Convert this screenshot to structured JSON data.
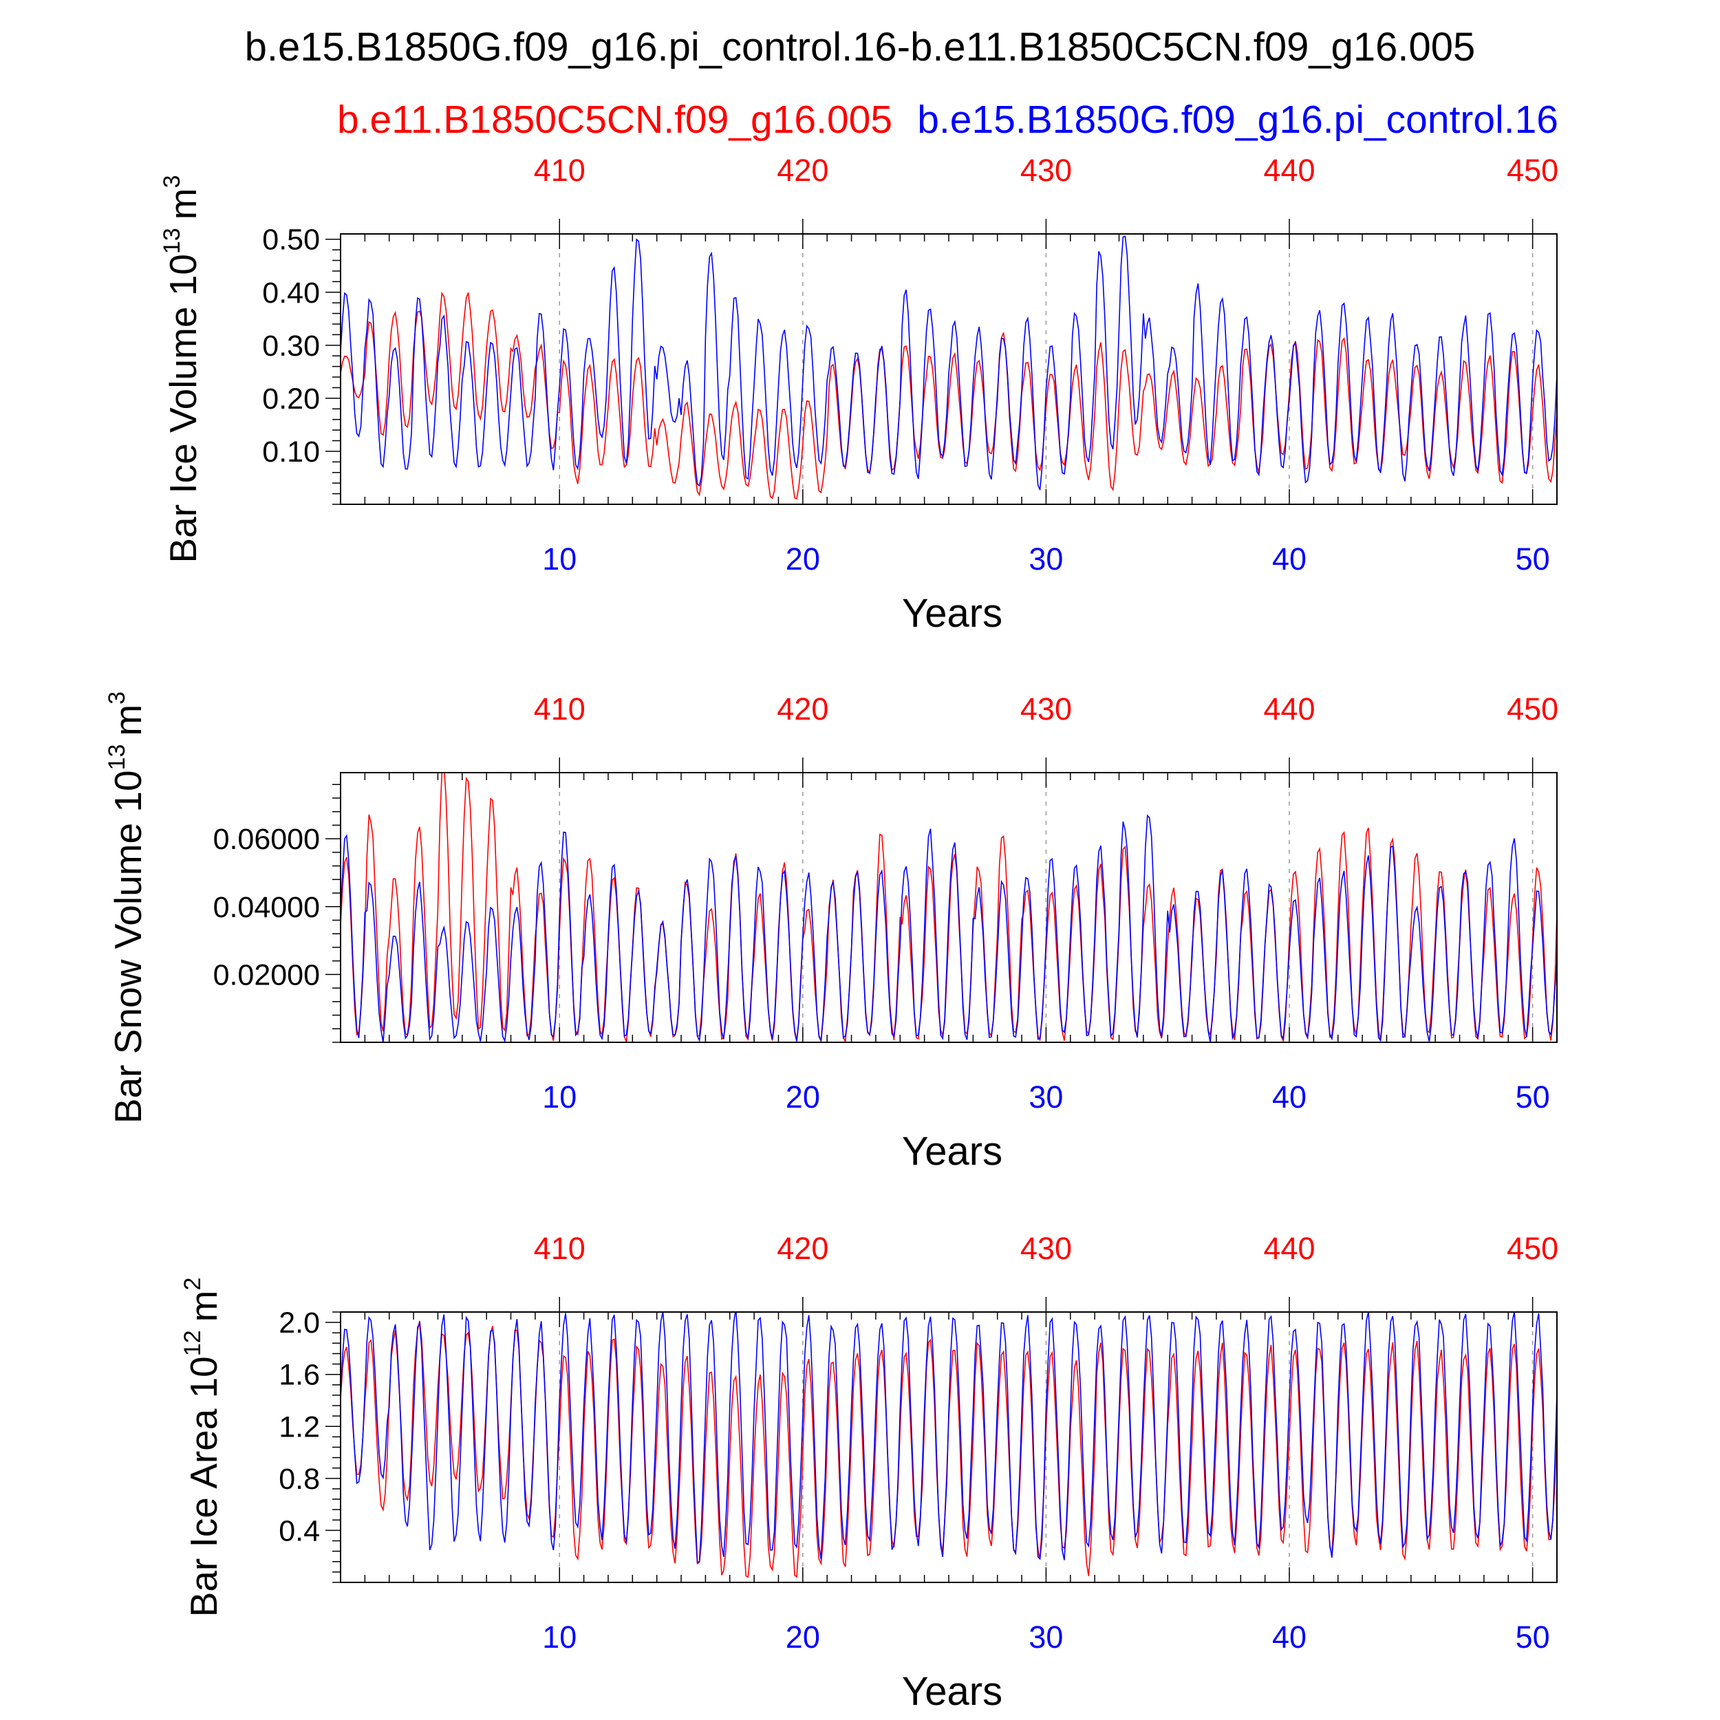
{
  "title": "b.e15.B1850G.f09_g16.pi_control.16-b.e11.B1850C5CN.f09_g16.005",
  "legend": {
    "red_label": "b.e11.B1850C5CN.f09_g16.005",
    "blue_label": "b.e15.B1850G.f09_g16.pi_control.16"
  },
  "colors": {
    "red": "#ff0000",
    "blue": "#0000ff",
    "grid": "#999999",
    "axis": "#000000"
  },
  "chart_data": [
    {
      "type": "line",
      "ylabel": "Bar Ice Volume 10",
      "ylabel_exp": "13",
      "ylabel_unit": "m",
      "ylabel_unit_exp": "3",
      "xlabel": "Years",
      "xlim": [
        1,
        51
      ],
      "ylim": [
        0.0,
        0.51
      ],
      "yticks": [
        0.1,
        0.2,
        0.3,
        0.4,
        0.5
      ],
      "yticklabels": [
        "0.10",
        "0.20",
        "0.30",
        "0.40",
        "0.50"
      ],
      "xticks_bottom": [
        10,
        20,
        30,
        40,
        50
      ],
      "xticklabels_bottom": [
        "10",
        "20",
        "30",
        "40",
        "50"
      ],
      "xticklabels_top": [
        "410",
        "420",
        "430",
        "440",
        "450"
      ],
      "series": [
        {
          "name": "b.e11.B1850C5CN.f09_g16.005",
          "color": "red",
          "annual_max": [
            0.28,
            0.35,
            0.36,
            0.37,
            0.4,
            0.4,
            0.37,
            0.32,
            0.3,
            0.27,
            0.26,
            0.27,
            0.28,
            0.16,
            0.19,
            0.17,
            0.19,
            0.18,
            0.18,
            0.2,
            0.26,
            0.28,
            0.3,
            0.3,
            0.28,
            0.28,
            0.27,
            0.32,
            0.27,
            0.25,
            0.26,
            0.3,
            0.29,
            0.25,
            0.25,
            0.24,
            0.26,
            0.3,
            0.3,
            0.31,
            0.31,
            0.31,
            0.28,
            0.27,
            0.27,
            0.25,
            0.27,
            0.28,
            0.29,
            0.26,
            0.25
          ],
          "annual_min": [
            0.2,
            0.13,
            0.14,
            0.19,
            0.18,
            0.16,
            0.17,
            0.16,
            0.1,
            0.04,
            0.07,
            0.07,
            0.07,
            0.04,
            0.02,
            0.03,
            0.03,
            0.01,
            0.01,
            0.02,
            0.07,
            0.06,
            0.06,
            0.09,
            0.08,
            0.07,
            0.09,
            0.06,
            0.06,
            0.07,
            0.05,
            0.03,
            0.09,
            0.1,
            0.07,
            0.07,
            0.07,
            0.06,
            0.09,
            0.06,
            0.06,
            0.07,
            0.06,
            0.09,
            0.05,
            0.07,
            0.06,
            0.04,
            0.05,
            0.04,
            0.05
          ]
        },
        {
          "name": "b.e15.B1850G.f09_g16.pi_control.16",
          "color": "blue",
          "annual_max": [
            0.4,
            0.39,
            0.3,
            0.39,
            0.35,
            0.31,
            0.31,
            0.3,
            0.36,
            0.33,
            0.32,
            0.45,
            0.51,
            0.3,
            0.27,
            0.47,
            0.39,
            0.35,
            0.33,
            0.34,
            0.3,
            0.29,
            0.3,
            0.4,
            0.37,
            0.34,
            0.33,
            0.32,
            0.35,
            0.3,
            0.36,
            0.48,
            0.51,
            0.35,
            0.3,
            0.41,
            0.39,
            0.36,
            0.32,
            0.3,
            0.37,
            0.38,
            0.35,
            0.36,
            0.31,
            0.32,
            0.35,
            0.36,
            0.33,
            0.33,
            0.32
          ],
          "annual_min": [
            0.12,
            0.07,
            0.06,
            0.09,
            0.07,
            0.07,
            0.07,
            0.07,
            0.07,
            0.07,
            0.13,
            0.08,
            0.12,
            0.15,
            0.03,
            0.08,
            0.05,
            0.05,
            0.07,
            0.08,
            0.07,
            0.06,
            0.05,
            0.05,
            0.08,
            0.07,
            0.05,
            0.08,
            0.03,
            0.05,
            0.08,
            0.1,
            0.15,
            0.11,
            0.09,
            0.08,
            0.08,
            0.06,
            0.07,
            0.04,
            0.07,
            0.08,
            0.06,
            0.05,
            0.06,
            0.05,
            0.06,
            0.05,
            0.06,
            0.08,
            0.13
          ]
        }
      ]
    },
    {
      "type": "line",
      "ylabel": "Bar Snow Volume 10",
      "ylabel_exp": "13",
      "ylabel_unit": "m",
      "ylabel_unit_exp": "3",
      "xlabel": "Years",
      "xlim": [
        1,
        51
      ],
      "ylim": [
        0.0,
        0.0795
      ],
      "yticks": [
        0.02,
        0.04,
        0.06
      ],
      "yticklabels": [
        "0.02000",
        "0.04000",
        "0.06000"
      ],
      "xticks_bottom": [
        10,
        20,
        30,
        40,
        50
      ],
      "xticklabels_bottom": [
        "10",
        "20",
        "30",
        "40",
        "50"
      ],
      "xticklabels_top": [
        "410",
        "420",
        "430",
        "440",
        "450"
      ],
      "series": [
        {
          "name": "b.e11.B1850C5CN.f09_g16.005",
          "color": "red",
          "annual_max": [
            0.056,
            0.067,
            0.049,
            0.064,
            0.08,
            0.078,
            0.072,
            0.052,
            0.045,
            0.055,
            0.055,
            0.048,
            0.046,
            0.035,
            0.048,
            0.04,
            0.055,
            0.043,
            0.052,
            0.04,
            0.047,
            0.052,
            0.062,
            0.043,
            0.052,
            0.055,
            0.052,
            0.062,
            0.045,
            0.045,
            0.047,
            0.052,
            0.058,
            0.047,
            0.045,
            0.043,
            0.052,
            0.044,
            0.046,
            0.052,
            0.058,
            0.062,
            0.063,
            0.06,
            0.055,
            0.052,
            0.05,
            0.045,
            0.044,
            0.052,
            0.058
          ],
          "annual_min": [
            0.002,
            0.004,
            0.002,
            0.004,
            0.005,
            0.004,
            0.002,
            0.001,
            0.001,
            0.001,
            0.001,
            0.001,
            0.001,
            0.001,
            0.001,
            0.001,
            0.001,
            0.001,
            0.001,
            0.001,
            0.001,
            0.001,
            0.001,
            0.001,
            0.001,
            0.001,
            0.001,
            0.001,
            0.001,
            0.001,
            0.001,
            0.001,
            0.001,
            0.001,
            0.001,
            0.001,
            0.001,
            0.001,
            0.001,
            0.001,
            0.001,
            0.001,
            0.001,
            0.001,
            0.001,
            0.001,
            0.001,
            0.001,
            0.001,
            0.001,
            0.01
          ]
        },
        {
          "name": "b.e15.B1850G.f09_g16.pi_control.16",
          "color": "blue",
          "annual_max": [
            0.062,
            0.047,
            0.032,
            0.047,
            0.034,
            0.036,
            0.04,
            0.04,
            0.052,
            0.062,
            0.043,
            0.052,
            0.045,
            0.035,
            0.048,
            0.054,
            0.055,
            0.052,
            0.05,
            0.05,
            0.047,
            0.05,
            0.05,
            0.053,
            0.062,
            0.058,
            0.045,
            0.048,
            0.05,
            0.055,
            0.052,
            0.058,
            0.065,
            0.067,
            0.04,
            0.046,
            0.05,
            0.052,
            0.047,
            0.043,
            0.048,
            0.05,
            0.055,
            0.058,
            0.04,
            0.046,
            0.052,
            0.055,
            0.06,
            0.045,
            0.042
          ],
          "annual_min": [
            0.001,
            0.001,
            0.001,
            0.001,
            0.001,
            0.001,
            0.001,
            0.001,
            0.001,
            0.001,
            0.001,
            0.001,
            0.001,
            0.001,
            0.001,
            0.001,
            0.001,
            0.001,
            0.001,
            0.001,
            0.001,
            0.001,
            0.001,
            0.001,
            0.001,
            0.001,
            0.001,
            0.001,
            0.001,
            0.001,
            0.001,
            0.001,
            0.001,
            0.001,
            0.001,
            0.001,
            0.001,
            0.001,
            0.001,
            0.001,
            0.001,
            0.001,
            0.001,
            0.001,
            0.001,
            0.001,
            0.001,
            0.001,
            0.001,
            0.001,
            0.001
          ]
        }
      ]
    },
    {
      "type": "line",
      "ylabel": "Bar Ice Area 10",
      "ylabel_exp": "12",
      "ylabel_unit": "m",
      "ylabel_unit_exp": "2",
      "xlabel": "Years",
      "xlim": [
        1,
        51
      ],
      "ylim": [
        0.0,
        2.08
      ],
      "yticks": [
        0.4,
        0.8,
        1.2,
        1.6,
        2.0
      ],
      "yticklabels": [
        "0.4",
        "0.8",
        "1.2",
        "1.6",
        "2.0"
      ],
      "xticks_bottom": [
        10,
        20,
        30,
        40,
        50
      ],
      "xticklabels_bottom": [
        "10",
        "20",
        "30",
        "40",
        "50"
      ],
      "xticklabels_top": [
        "410",
        "420",
        "430",
        "440",
        "450"
      ],
      "series": [
        {
          "name": "b.e11.B1850C5CN.f09_g16.005",
          "color": "red",
          "annual_max": [
            1.8,
            1.85,
            1.92,
            2.0,
            1.92,
            1.95,
            1.95,
            1.95,
            1.9,
            1.78,
            1.8,
            1.88,
            1.85,
            1.7,
            1.75,
            1.65,
            1.6,
            1.6,
            1.62,
            1.7,
            1.75,
            1.8,
            1.82,
            1.78,
            1.9,
            1.8,
            1.85,
            1.78,
            1.8,
            1.75,
            1.7,
            1.85,
            1.82,
            1.8,
            1.75,
            1.78,
            1.82,
            1.78,
            1.82,
            1.8,
            1.85,
            1.85,
            1.8,
            1.82,
            1.85,
            1.78,
            1.8,
            1.82,
            1.85,
            1.8,
            1.72
          ],
          "annual_min": [
            0.8,
            0.55,
            0.6,
            0.75,
            0.8,
            0.7,
            0.6,
            0.45,
            0.35,
            0.15,
            0.25,
            0.3,
            0.25,
            0.15,
            0.1,
            0.05,
            0.02,
            0.05,
            0.03,
            0.1,
            0.15,
            0.2,
            0.25,
            0.3,
            0.25,
            0.2,
            0.3,
            0.25,
            0.18,
            0.22,
            0.08,
            0.22,
            0.25,
            0.3,
            0.2,
            0.25,
            0.22,
            0.2,
            0.28,
            0.2,
            0.25,
            0.3,
            0.28,
            0.2,
            0.25,
            0.22,
            0.28,
            0.25,
            0.2,
            0.3,
            0.6
          ]
        },
        {
          "name": "b.e15.B1850G.f09_g16.pi_control.16",
          "color": "blue",
          "annual_max": [
            1.95,
            2.05,
            2.0,
            1.98,
            2.05,
            2.05,
            2.0,
            2.0,
            2.0,
            2.05,
            2.0,
            2.05,
            2.05,
            2.08,
            2.1,
            2.05,
            2.1,
            2.05,
            2.05,
            2.05,
            2.0,
            2.0,
            2.0,
            2.05,
            2.05,
            2.05,
            2.0,
            2.05,
            2.05,
            2.05,
            2.05,
            2.0,
            2.05,
            2.05,
            2.05,
            2.08,
            2.05,
            2.0,
            2.05,
            2.0,
            2.05,
            2.0,
            2.05,
            2.05,
            2.05,
            2.05,
            2.05,
            2.0,
            2.05,
            2.05,
            2.0
          ],
          "annual_min": [
            0.75,
            0.8,
            0.45,
            0.25,
            0.3,
            0.35,
            0.3,
            0.4,
            0.25,
            0.4,
            0.35,
            0.3,
            0.35,
            0.25,
            0.15,
            0.2,
            0.25,
            0.2,
            0.25,
            0.2,
            0.3,
            0.35,
            0.25,
            0.3,
            0.2,
            0.35,
            0.35,
            0.2,
            0.15,
            0.2,
            0.25,
            0.3,
            0.35,
            0.25,
            0.3,
            0.35,
            0.3,
            0.3,
            0.4,
            0.45,
            0.2,
            0.35,
            0.3,
            0.25,
            0.3,
            0.35,
            0.3,
            0.25,
            0.35,
            0.3,
            0.7
          ]
        }
      ]
    }
  ]
}
